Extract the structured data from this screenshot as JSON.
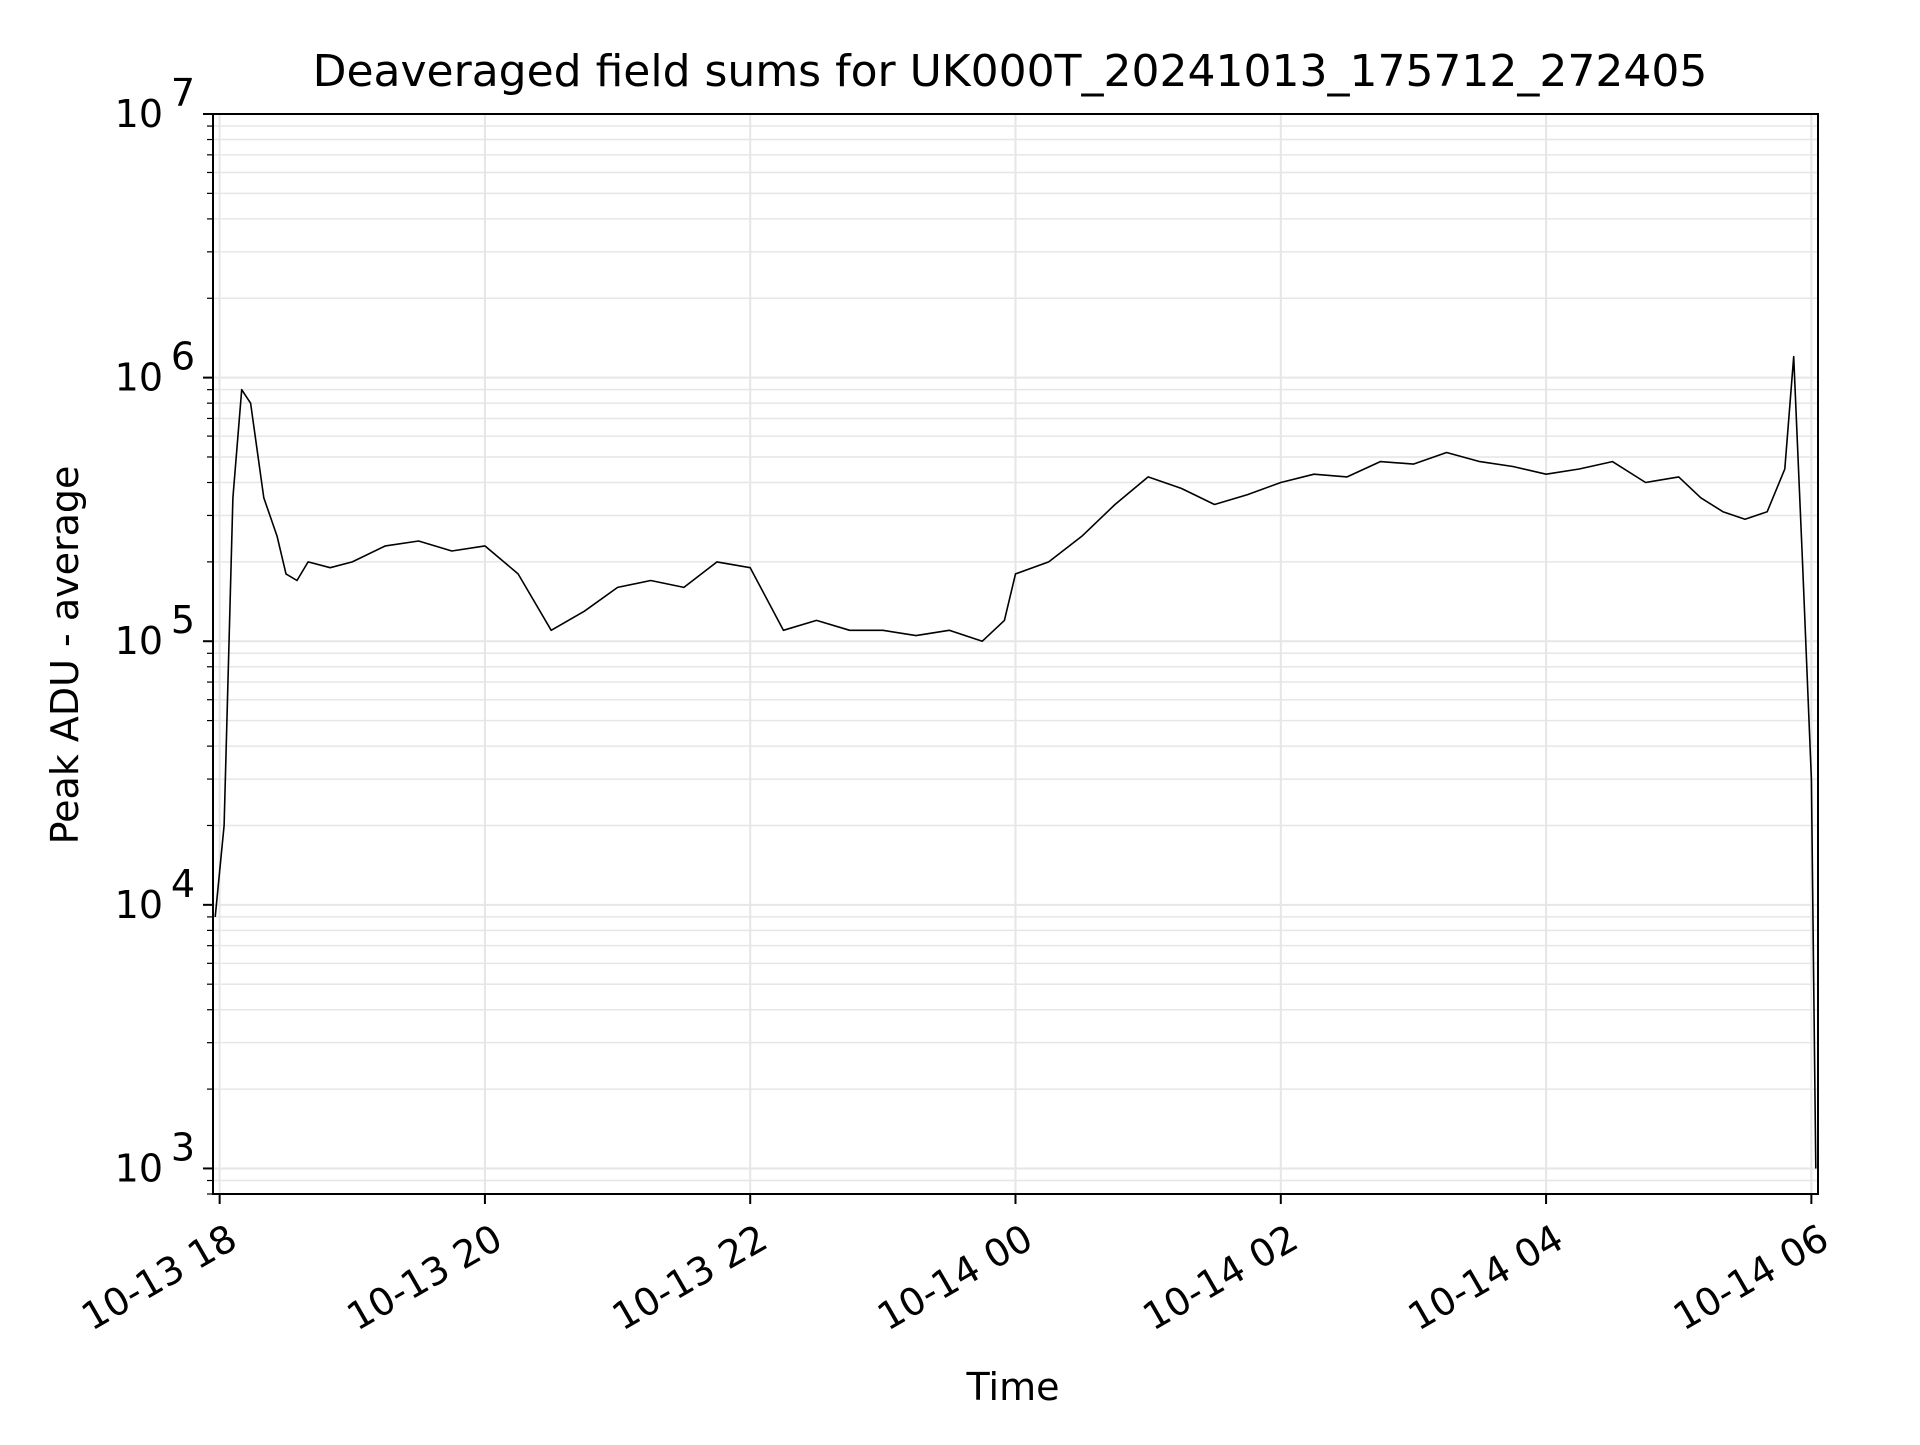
{
  "chart_data": {
    "type": "line",
    "title": "Deaveraged field sums for UK000T_20241013_175712_272405",
    "xlabel": "Time",
    "ylabel": "Peak ADU - average",
    "y_scale": "log",
    "ylim": [
      800,
      10000000
    ],
    "xlim": [
      "2024-10-13 17:57",
      "2024-10-14 06:03"
    ],
    "grid": true,
    "legend": "none",
    "line_color": "#000000",
    "grid_color": "#e6e6e6",
    "x_ticks": [
      {
        "label": "10-13 18",
        "value": "2024-10-13 18:00"
      },
      {
        "label": "10-13 20",
        "value": "2024-10-13 20:00"
      },
      {
        "label": "10-13 22",
        "value": "2024-10-13 22:00"
      },
      {
        "label": "10-14 00",
        "value": "2024-10-14 00:00"
      },
      {
        "label": "10-14 02",
        "value": "2024-10-14 02:00"
      },
      {
        "label": "10-14 04",
        "value": "2024-10-14 04:00"
      },
      {
        "label": "10-14 06",
        "value": "2024-10-14 06:00"
      }
    ],
    "y_ticks": [
      {
        "base": "10",
        "exp": "3",
        "value": 1000
      },
      {
        "base": "10",
        "exp": "4",
        "value": 10000
      },
      {
        "base": "10",
        "exp": "5",
        "value": 100000
      },
      {
        "base": "10",
        "exp": "6",
        "value": 1000000
      },
      {
        "base": "10",
        "exp": "7",
        "value": 10000000
      }
    ],
    "series": [
      {
        "x": [
          "2024-10-13 17:58",
          "2024-10-13 18:02",
          "2024-10-13 18:06",
          "2024-10-13 18:10",
          "2024-10-13 18:14",
          "2024-10-13 18:20",
          "2024-10-13 18:26",
          "2024-10-13 18:30",
          "2024-10-13 18:35",
          "2024-10-13 18:40",
          "2024-10-13 18:50",
          "2024-10-13 19:00",
          "2024-10-13 19:15",
          "2024-10-13 19:30",
          "2024-10-13 19:45",
          "2024-10-13 20:00",
          "2024-10-13 20:15",
          "2024-10-13 20:30",
          "2024-10-13 20:45",
          "2024-10-13 21:00",
          "2024-10-13 21:15",
          "2024-10-13 21:30",
          "2024-10-13 21:45",
          "2024-10-13 22:00",
          "2024-10-13 22:15",
          "2024-10-13 22:30",
          "2024-10-13 22:45",
          "2024-10-13 23:00",
          "2024-10-13 23:15",
          "2024-10-13 23:30",
          "2024-10-13 23:45",
          "2024-10-13 23:55",
          "2024-10-14 00:00",
          "2024-10-14 00:15",
          "2024-10-14 00:30",
          "2024-10-14 00:45",
          "2024-10-14 01:00",
          "2024-10-14 01:15",
          "2024-10-14 01:30",
          "2024-10-14 01:45",
          "2024-10-14 02:00",
          "2024-10-14 02:15",
          "2024-10-14 02:30",
          "2024-10-14 02:45",
          "2024-10-14 03:00",
          "2024-10-14 03:15",
          "2024-10-14 03:30",
          "2024-10-14 03:45",
          "2024-10-14 04:00",
          "2024-10-14 04:15",
          "2024-10-14 04:30",
          "2024-10-14 04:45",
          "2024-10-14 05:00",
          "2024-10-14 05:10",
          "2024-10-14 05:20",
          "2024-10-14 05:30",
          "2024-10-14 05:40",
          "2024-10-14 05:48",
          "2024-10-14 05:52",
          "2024-10-14 05:56",
          "2024-10-14 06:00",
          "2024-10-14 06:02"
        ],
        "y": [
          9000,
          20000,
          350000,
          900000,
          800000,
          350000,
          250000,
          180000,
          170000,
          200000,
          190000,
          200000,
          230000,
          240000,
          220000,
          230000,
          180000,
          110000,
          130000,
          160000,
          170000,
          160000,
          200000,
          190000,
          110000,
          120000,
          110000,
          110000,
          105000,
          110000,
          100000,
          120000,
          180000,
          200000,
          250000,
          330000,
          420000,
          380000,
          330000,
          360000,
          400000,
          430000,
          420000,
          480000,
          470000,
          520000,
          480000,
          460000,
          430000,
          450000,
          480000,
          400000,
          420000,
          350000,
          310000,
          290000,
          310000,
          450000,
          1200000,
          200000,
          30000,
          1000
        ]
      }
    ]
  }
}
